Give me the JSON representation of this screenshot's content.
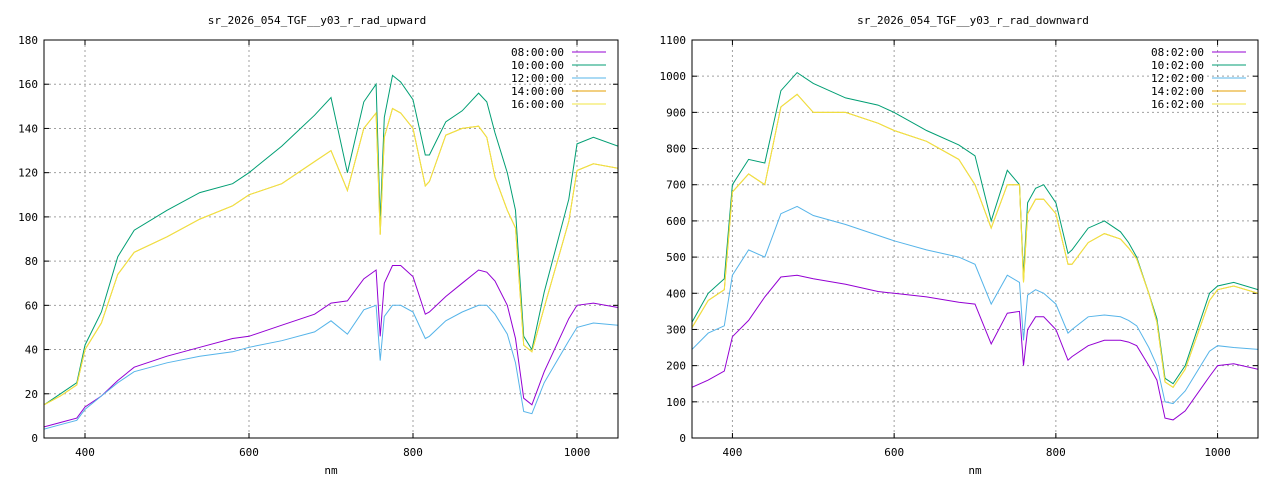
{
  "chart_data": [
    {
      "type": "line",
      "title": "sr_2026_054_TGF__y03_r_rad_upward",
      "xlabel": "nm",
      "ylabel": "",
      "xlim": [
        350,
        1050
      ],
      "ylim": [
        0,
        180
      ],
      "xticks": [
        400,
        600,
        800,
        1000
      ],
      "yticks": [
        0,
        20,
        40,
        60,
        80,
        100,
        120,
        140,
        160,
        180
      ],
      "grid": true,
      "legend_position": "top-right",
      "series": [
        {
          "name": "08:00:00",
          "color": "#9400d3",
          "x": [
            350,
            370,
            390,
            400,
            420,
            440,
            460,
            500,
            540,
            580,
            600,
            640,
            680,
            700,
            720,
            740,
            755,
            760,
            765,
            775,
            785,
            800,
            815,
            820,
            840,
            860,
            880,
            890,
            900,
            915,
            925,
            935,
            945,
            960,
            990,
            1000,
            1020,
            1050
          ],
          "y": [
            5,
            7,
            9,
            14,
            19,
            26,
            32,
            37,
            41,
            45,
            46,
            51,
            56,
            61,
            62,
            72,
            76,
            46,
            70,
            78,
            78,
            73,
            56,
            57,
            64,
            70,
            76,
            75,
            71,
            60,
            45,
            18,
            15,
            30,
            54,
            60,
            61,
            59
          ]
        },
        {
          "name": "10:00:00",
          "color": "#009e73",
          "x": [
            350,
            370,
            390,
            400,
            420,
            440,
            460,
            500,
            540,
            580,
            600,
            640,
            680,
            700,
            720,
            740,
            755,
            760,
            765,
            775,
            785,
            800,
            815,
            820,
            840,
            860,
            880,
            890,
            900,
            915,
            925,
            935,
            945,
            960,
            990,
            1000,
            1020,
            1050
          ],
          "y": [
            15,
            20,
            25,
            42,
            57,
            82,
            94,
            103,
            111,
            115,
            120,
            132,
            146,
            154,
            120,
            152,
            160,
            98,
            145,
            164,
            161,
            153,
            128,
            128,
            143,
            148,
            156,
            152,
            138,
            120,
            103,
            46,
            40,
            66,
            108,
            133,
            136,
            132
          ]
        },
        {
          "name": "12:00:00",
          "color": "#56b4e9",
          "x": [
            350,
            370,
            390,
            400,
            420,
            440,
            460,
            500,
            540,
            580,
            600,
            640,
            680,
            700,
            720,
            740,
            755,
            760,
            765,
            775,
            785,
            800,
            815,
            820,
            840,
            860,
            880,
            890,
            900,
            915,
            925,
            935,
            945,
            960,
            990,
            1000,
            1020,
            1050
          ],
          "y": [
            4,
            6,
            8,
            13,
            19,
            25,
            30,
            34,
            37,
            39,
            41,
            44,
            48,
            53,
            47,
            58,
            60,
            35,
            55,
            60,
            60,
            57,
            45,
            46,
            53,
            57,
            60,
            60,
            56,
            47,
            34,
            12,
            11,
            25,
            44,
            50,
            52,
            51
          ]
        },
        {
          "name": "14:00:00",
          "color": "#e69f00",
          "x": [
            350,
            370,
            390,
            400,
            420,
            440,
            460,
            500,
            540,
            580,
            600,
            640,
            680,
            700,
            720,
            740,
            755,
            760,
            765,
            775,
            785,
            800,
            815,
            820,
            840,
            860,
            880,
            890,
            900,
            915,
            925,
            935,
            945,
            960,
            990,
            1000,
            1020,
            1050
          ],
          "y": [
            15,
            19,
            24,
            40,
            52,
            74,
            84,
            91,
            99,
            105,
            110,
            115,
            125,
            130,
            112,
            140,
            147,
            92,
            136,
            149,
            147,
            140,
            114,
            116,
            137,
            140,
            141,
            136,
            118,
            103,
            95,
            42,
            39,
            59,
            98,
            121,
            124,
            122
          ]
        },
        {
          "name": "16:00:00",
          "color": "#f0e442",
          "x": [
            350,
            370,
            390,
            400,
            420,
            440,
            460,
            500,
            540,
            580,
            600,
            640,
            680,
            700,
            720,
            740,
            755,
            760,
            765,
            775,
            785,
            800,
            815,
            820,
            840,
            860,
            880,
            890,
            900,
            915,
            925,
            935,
            945,
            960,
            990,
            1000,
            1020,
            1050
          ],
          "y": [
            15,
            19,
            24,
            40,
            52,
            74,
            84,
            91,
            99,
            105,
            110,
            115,
            125,
            130,
            112,
            140,
            147,
            92,
            136,
            149,
            147,
            140,
            114,
            116,
            137,
            140,
            141,
            136,
            118,
            103,
            95,
            42,
            39,
            59,
            98,
            121,
            124,
            122
          ]
        }
      ]
    },
    {
      "type": "line",
      "title": "sr_2026_054_TGF__y03_r_rad_downward",
      "xlabel": "nm",
      "ylabel": "",
      "xlim": [
        350,
        1050
      ],
      "ylim": [
        0,
        1100
      ],
      "xticks": [
        400,
        600,
        800,
        1000
      ],
      "yticks": [
        0,
        100,
        200,
        300,
        400,
        500,
        600,
        700,
        800,
        900,
        1000,
        1100
      ],
      "grid": true,
      "legend_position": "top-right",
      "series": [
        {
          "name": "08:02:00",
          "color": "#9400d3",
          "x": [
            350,
            370,
            390,
            400,
            420,
            440,
            460,
            480,
            500,
            540,
            580,
            600,
            640,
            680,
            700,
            720,
            740,
            755,
            760,
            765,
            775,
            785,
            800,
            815,
            820,
            840,
            860,
            880,
            890,
            900,
            915,
            925,
            935,
            945,
            960,
            990,
            1000,
            1020,
            1050
          ],
          "y": [
            140,
            160,
            185,
            280,
            325,
            390,
            445,
            450,
            440,
            425,
            405,
            400,
            390,
            375,
            370,
            260,
            345,
            350,
            200,
            300,
            335,
            335,
            300,
            215,
            225,
            255,
            270,
            270,
            265,
            255,
            200,
            160,
            55,
            50,
            75,
            170,
            200,
            205,
            190
          ]
        },
        {
          "name": "10:02:00",
          "color": "#009e73",
          "x": [
            350,
            370,
            390,
            400,
            420,
            440,
            460,
            480,
            500,
            540,
            580,
            600,
            640,
            680,
            700,
            720,
            740,
            755,
            760,
            765,
            775,
            785,
            800,
            815,
            820,
            840,
            860,
            880,
            890,
            900,
            915,
            925,
            935,
            945,
            960,
            990,
            1000,
            1020,
            1050
          ],
          "y": [
            320,
            400,
            440,
            700,
            770,
            760,
            960,
            1010,
            980,
            940,
            920,
            900,
            850,
            810,
            780,
            600,
            740,
            700,
            450,
            650,
            690,
            700,
            650,
            510,
            520,
            580,
            600,
            570,
            540,
            500,
            400,
            330,
            165,
            150,
            200,
            400,
            420,
            430,
            410
          ]
        },
        {
          "name": "12:02:00",
          "color": "#56b4e9",
          "x": [
            350,
            370,
            390,
            400,
            420,
            440,
            460,
            480,
            500,
            540,
            580,
            600,
            640,
            680,
            700,
            720,
            740,
            755,
            760,
            765,
            775,
            785,
            800,
            815,
            820,
            840,
            860,
            880,
            890,
            900,
            915,
            925,
            935,
            945,
            960,
            990,
            1000,
            1020,
            1050
          ],
          "y": [
            245,
            290,
            310,
            450,
            520,
            500,
            620,
            640,
            615,
            590,
            560,
            545,
            520,
            500,
            480,
            370,
            450,
            430,
            270,
            395,
            410,
            400,
            370,
            290,
            300,
            335,
            340,
            335,
            325,
            310,
            250,
            200,
            100,
            95,
            130,
            240,
            255,
            250,
            245
          ]
        },
        {
          "name": "14:02:00",
          "color": "#e69f00",
          "x": [
            350,
            370,
            390,
            400,
            420,
            440,
            460,
            480,
            500,
            540,
            580,
            600,
            640,
            680,
            700,
            720,
            740,
            755,
            760,
            765,
            775,
            785,
            800,
            815,
            820,
            840,
            860,
            880,
            890,
            900,
            915,
            925,
            935,
            945,
            960,
            990,
            1000,
            1020,
            1050
          ],
          "y": [
            305,
            380,
            410,
            680,
            730,
            700,
            915,
            950,
            900,
            900,
            870,
            850,
            820,
            770,
            700,
            580,
            700,
            700,
            430,
            620,
            660,
            660,
            620,
            480,
            480,
            540,
            565,
            550,
            525,
            495,
            400,
            320,
            155,
            140,
            190,
            380,
            410,
            420,
            400
          ]
        },
        {
          "name": "16:02:00",
          "color": "#f0e442",
          "x": [
            350,
            370,
            390,
            400,
            420,
            440,
            460,
            480,
            500,
            540,
            580,
            600,
            640,
            680,
            700,
            720,
            740,
            755,
            760,
            765,
            775,
            785,
            800,
            815,
            820,
            840,
            860,
            880,
            890,
            900,
            915,
            925,
            935,
            945,
            960,
            990,
            1000,
            1020,
            1050
          ],
          "y": [
            305,
            380,
            410,
            680,
            730,
            700,
            915,
            950,
            900,
            900,
            870,
            850,
            820,
            770,
            700,
            580,
            700,
            700,
            430,
            620,
            660,
            660,
            620,
            480,
            480,
            540,
            565,
            550,
            525,
            495,
            400,
            320,
            155,
            140,
            190,
            380,
            410,
            420,
            400
          ]
        }
      ]
    }
  ]
}
